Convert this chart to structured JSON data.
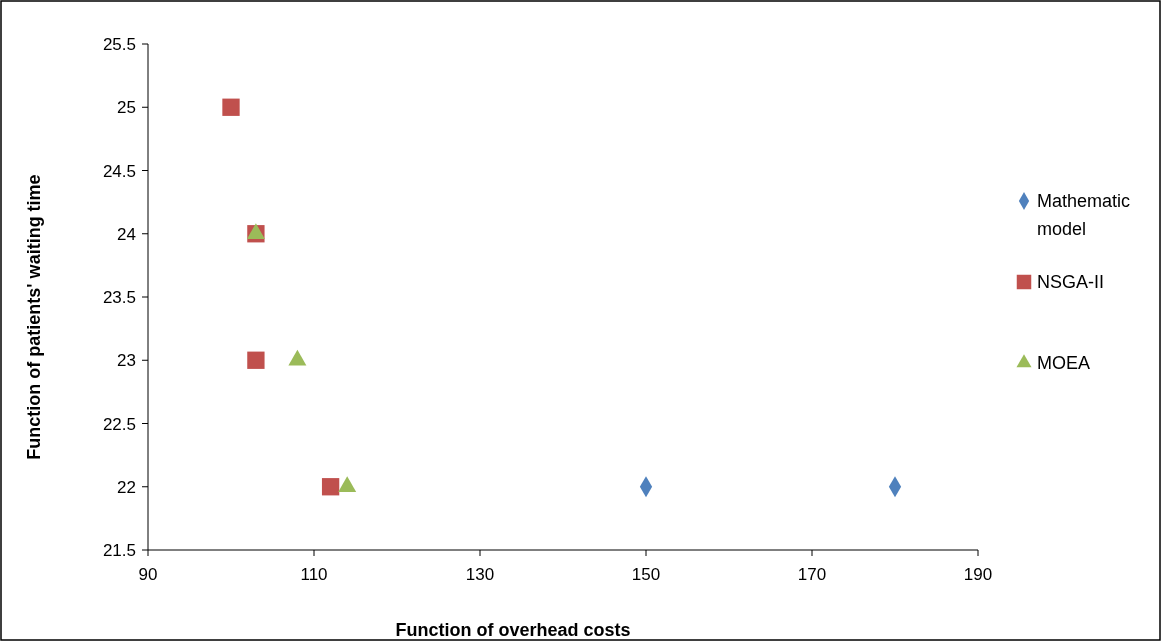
{
  "chart_data": {
    "type": "scatter",
    "xlabel": "Function of overhead costs",
    "ylabel": "Function of patients' waiting time",
    "xlim": [
      90,
      190
    ],
    "xticks": [
      90,
      110,
      130,
      150,
      170,
      190
    ],
    "ylim": [
      21.5,
      25.5
    ],
    "yticks": [
      21.5,
      22,
      22.5,
      23,
      23.5,
      24,
      24.5,
      25,
      25.5
    ],
    "grid": false,
    "legend": "right",
    "series": [
      {
        "name": "Mathematic model",
        "color": "#4f81bd",
        "marker": "diamond",
        "x": [
          150,
          180
        ],
        "values": [
          22,
          22
        ]
      },
      {
        "name": "NSGA-II",
        "color": "#c0504d",
        "marker": "square",
        "x": [
          100,
          103,
          103,
          112
        ],
        "values": [
          25,
          24,
          23,
          22
        ]
      },
      {
        "name": "MOEA",
        "color": "#9bbb59",
        "marker": "triangle",
        "x": [
          103,
          108,
          114
        ],
        "values": [
          24,
          23,
          22
        ]
      }
    ]
  }
}
